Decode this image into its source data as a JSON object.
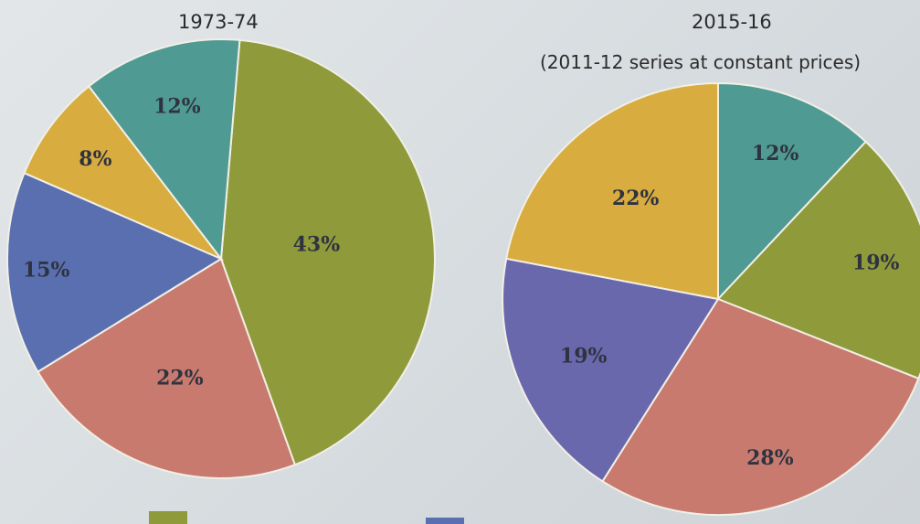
{
  "chart_data": [
    {
      "type": "pie",
      "title": "1973-74",
      "subtitle": "",
      "slices": [
        {
          "value": 43,
          "label": "43%",
          "color": "#8f9a3a"
        },
        {
          "value": 22,
          "label": "22%",
          "color": "#c97a6e"
        },
        {
          "value": 15,
          "label": "15%",
          "color": "#5a6fb0"
        },
        {
          "value": 8,
          "label": "8%",
          "color": "#d8ac3e"
        },
        {
          "value": 12,
          "label": "12%",
          "color": "#4f9a92"
        }
      ]
    },
    {
      "type": "pie",
      "title": "2015-16",
      "subtitle": "(2011-12 series at constant prices)",
      "slices": [
        {
          "value": 12,
          "label": "12%",
          "color": "#4f9a92"
        },
        {
          "value": 19,
          "label": "19%",
          "color": "#8f9a3a"
        },
        {
          "value": 28,
          "label": "28%",
          "color": "#c97a6e"
        },
        {
          "value": 19,
          "label": "19%",
          "color": "#6a68ad"
        },
        {
          "value": 22,
          "label": "22%",
          "color": "#d8ac3e"
        }
      ]
    }
  ],
  "legend_colors": [
    "#8f9a3a",
    "#5a6fb0"
  ]
}
